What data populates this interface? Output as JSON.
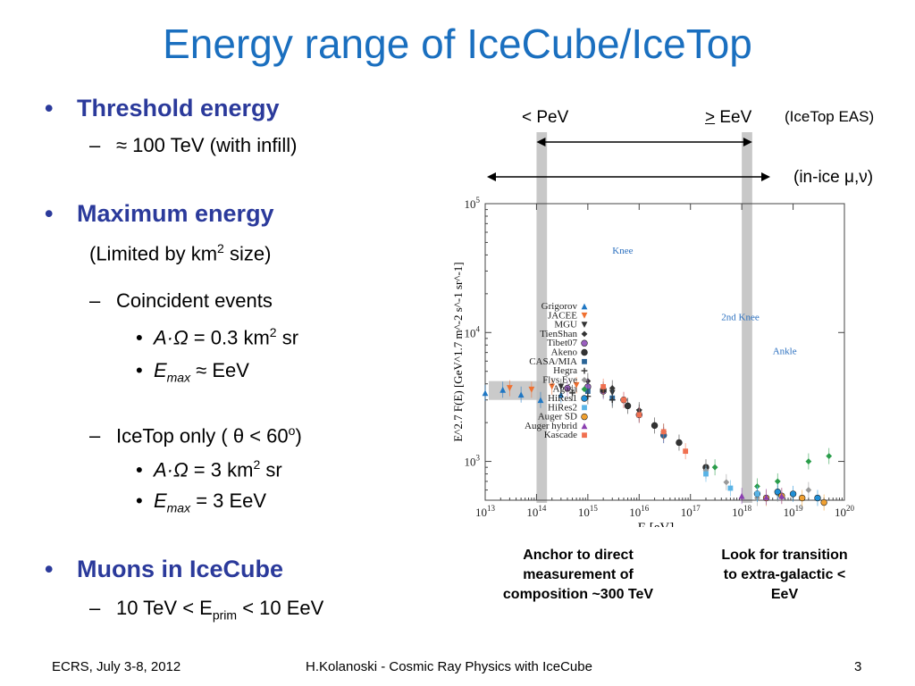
{
  "slide": {
    "title": "Energy range of IceCube/IceTop",
    "footer_left": "ECRS, July 3-8, 2012",
    "footer_center": "H.Kolanoski - Cosmic Ray Physics with IceCube",
    "page_number": "3"
  },
  "bullets": {
    "threshold_heading": "Threshold energy",
    "threshold_value": "≈ 100 TeV (with infill)",
    "maximum_heading": "Maximum energy",
    "maximum_note_pre": "(Limited by km",
    "maximum_note_sup": "2",
    "maximum_note_post": " size)",
    "coincident": "Coincident events",
    "coincident_area_pre": "A·Ω",
    "coincident_area_val": " = 0.3 km",
    "coincident_area_sup": "2",
    "coincident_area_post": " sr",
    "coincident_emax_sym": "E",
    "coincident_emax_sub": "max",
    "coincident_emax_val": " ≈ EeV",
    "icetop_only_pre": "IceTop only ( ",
    "icetop_only_theta": "θ",
    "icetop_only_mid": " < 60",
    "icetop_only_sup": "o",
    "icetop_only_post": ")",
    "icetop_area_pre": "A·Ω",
    "icetop_area_val": " = 3 km",
    "icetop_area_sup": "2",
    "icetop_area_post": " sr",
    "icetop_emax_sym": "E",
    "icetop_emax_sub": "max",
    "icetop_emax_val": " = 3 EeV",
    "muons_heading": "Muons in IceCube",
    "muons_range_pre": "10 TeV < E",
    "muons_range_sub": "prim",
    "muons_range_post": " < 10 EeV"
  },
  "annotations": {
    "pev_label": "< PeV",
    "eev_label": "> EeV",
    "icetop_eas": "(IceTop EAS)",
    "inice_label": "(in-ice μ,ν)",
    "caption_left_1": "Anchor to direct",
    "caption_left_2": "measurement of",
    "caption_left_3": "composition ~300 TeV",
    "caption_right_1": "Look for transition",
    "caption_right_2": "to extra-galactic  <",
    "caption_right_3": "EeV"
  },
  "chart_data": {
    "type": "scatter",
    "title": "",
    "xlabel": "E  [eV]",
    "ylabel": "E^2.7 F(E) [GeV^1.7 m^-2 s^-1 sr^-1]",
    "x_scale": "log",
    "y_scale": "log",
    "xlim": [
      10000000000000.0,
      1e+20
    ],
    "ylim": [
      500,
      100000
    ],
    "x_ticks": [
      "10^13",
      "10^14",
      "10^15",
      "10^16",
      "10^17",
      "10^18",
      "10^19",
      "10^20"
    ],
    "y_ticks": [
      "10^3",
      "10^4",
      "10^5"
    ],
    "regions": [
      {
        "label": "Knee",
        "x": 3000000000000000.0,
        "y": 41000
      },
      {
        "label": "2nd Knee",
        "x": 4e+17,
        "y": 12500
      },
      {
        "label": "Ankle",
        "x": 4e+18,
        "y": 6800
      }
    ],
    "highlight_bands_x": [
      [
        100000000000000.0,
        160000000000000.0
      ],
      [
        1e+18,
        1.6e+18
      ]
    ],
    "reference_band_y": [
      3000,
      4200
    ],
    "series": [
      {
        "name": "Grigorov",
        "color": "#1f77c4",
        "marker": "triangle-up",
        "points": [
          [
            10000000000000.0,
            3400
          ],
          [
            22000000000000.0,
            3600
          ],
          [
            50000000000000.0,
            3300
          ],
          [
            120000000000000.0,
            3000
          ],
          [
            300000000000000.0,
            3300
          ]
        ]
      },
      {
        "name": "JACEE",
        "color": "#f07030",
        "marker": "triangle-down",
        "points": [
          [
            30000000000000.0,
            3700
          ],
          [
            80000000000000.0,
            3600
          ],
          [
            200000000000000.0,
            3800
          ],
          [
            600000000000000.0,
            3900
          ]
        ]
      },
      {
        "name": "MGU",
        "color": "#333333",
        "marker": "triangle-down",
        "points": [
          [
            300000000000000.0,
            3800
          ],
          [
            1000000000000000.0,
            3500
          ],
          [
            3000000000000000.0,
            3400
          ],
          [
            1e+16,
            2400
          ]
        ]
      },
      {
        "name": "TienShan",
        "color": "#333333",
        "marker": "diamond",
        "points": [
          [
            1000000000000000.0,
            4200
          ],
          [
            3000000000000000.0,
            3700
          ],
          [
            1e+16,
            2500
          ],
          [
            3e+16,
            1700
          ]
        ]
      },
      {
        "name": "Tibet07",
        "color": "#9b5fc0",
        "marker": "circle",
        "points": [
          [
            400000000000000.0,
            3700
          ],
          [
            1000000000000000.0,
            3800
          ],
          [
            2000000000000000.0,
            3500
          ],
          [
            5000000000000000.0,
            3000
          ],
          [
            1e+16,
            2300
          ],
          [
            3e+16,
            1600
          ]
        ]
      },
      {
        "name": "Akeno",
        "color": "#333333",
        "marker": "circle",
        "points": [
          [
            2000000000000000.0,
            3600
          ],
          [
            6000000000000000.0,
            2700
          ],
          [
            2e+16,
            1900
          ],
          [
            6e+16,
            1400
          ],
          [
            2e+17,
            900
          ]
        ]
      },
      {
        "name": "CASA/MIA",
        "color": "#2a6496",
        "marker": "square",
        "points": [
          [
            1000000000000000.0,
            3500
          ],
          [
            3000000000000000.0,
            3100
          ],
          [
            1e+16,
            2300
          ],
          [
            3e+16,
            1600
          ]
        ]
      },
      {
        "name": "Hegra",
        "color": "#333333",
        "marker": "plus",
        "points": [
          [
            500000000000000.0,
            3400
          ],
          [
            1000000000000000.0,
            3200
          ],
          [
            3000000000000000.0,
            3000
          ]
        ]
      },
      {
        "name": "Flys Eye",
        "color": "#999999",
        "marker": "diamond",
        "points": [
          [
            2e+17,
            850
          ],
          [
            5e+17,
            690
          ],
          [
            2e+18,
            520
          ],
          [
            5e+18,
            560
          ],
          [
            2e+19,
            600
          ]
        ]
      },
      {
        "name": "Agasa",
        "color": "#2a9d4a",
        "marker": "diamond",
        "points": [
          [
            3e+17,
            900
          ],
          [
            2e+18,
            640
          ],
          [
            5e+18,
            700
          ],
          [
            2e+19,
            1000
          ],
          [
            5e+19,
            1100
          ]
        ]
      },
      {
        "name": "HiRes1",
        "color": "#1f8fd6",
        "marker": "circle",
        "points": [
          [
            2e+18,
            560
          ],
          [
            5e+18,
            580
          ],
          [
            1e+19,
            560
          ],
          [
            3e+19,
            520
          ]
        ]
      },
      {
        "name": "HiRes2",
        "color": "#5ab4e6",
        "marker": "square",
        "points": [
          [
            2e+17,
            800
          ],
          [
            6e+17,
            620
          ],
          [
            2e+18,
            560
          ]
        ]
      },
      {
        "name": "Auger SD",
        "color": "#f0a030",
        "marker": "circle",
        "points": [
          [
            3e+18,
            520
          ],
          [
            6e+18,
            540
          ],
          [
            1.5e+19,
            520
          ],
          [
            4e+19,
            480
          ]
        ]
      },
      {
        "name": "Auger hybrid",
        "color": "#8a3fb0",
        "marker": "triangle-up",
        "points": [
          [
            1e+18,
            540
          ],
          [
            3e+18,
            530
          ],
          [
            6e+18,
            540
          ]
        ]
      },
      {
        "name": "Kascade",
        "color": "#f07050",
        "marker": "square",
        "points": [
          [
            2000000000000000.0,
            3800
          ],
          [
            5000000000000000.0,
            3000
          ],
          [
            1e+16,
            2300
          ],
          [
            3e+16,
            1700
          ],
          [
            8e+16,
            1200
          ]
        ]
      }
    ]
  }
}
